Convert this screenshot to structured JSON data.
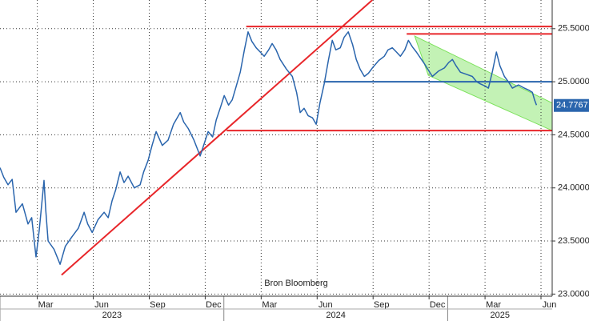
{
  "chart_data": {
    "type": "line",
    "source": "Bron Bloomberg",
    "x": [
      0,
      0.2,
      0.43,
      0.65,
      0.86,
      1.2,
      1.5,
      1.7,
      1.93,
      2.1,
      2.36,
      2.45,
      2.58,
      2.9,
      3.22,
      3.5,
      3.86,
      4.2,
      4.51,
      4.7,
      4.94,
      5.25,
      5.58,
      5.8,
      6.01,
      6.2,
      6.44,
      6.65,
      6.87,
      7.2,
      7.51,
      7.7,
      7.94,
      8.15,
      8.37,
      8.7,
      9.01,
      9.3,
      9.66,
      9.85,
      10.09,
      10.4,
      10.73,
      10.95,
      11.16,
      11.4,
      11.59,
      11.8,
      12.02,
      12.25,
      12.45,
      12.65,
      12.88,
      13.1,
      13.3,
      13.5,
      13.73,
      13.95,
      14.16,
      14.4,
      14.59,
      14.8,
      15.02,
      15.35,
      15.67,
      15.9,
      16.09,
      16.3,
      16.52,
      16.75,
      16.95,
      17.15,
      17.38,
      17.6,
      17.81,
      18.0,
      18.24,
      18.45,
      18.67,
      18.9,
      19.1,
      19.3,
      19.53,
      19.75,
      19.96,
      20.3,
      20.6,
      20.8,
      21.03,
      21.25,
      21.46,
      21.7,
      21.89,
      22.1,
      22.32,
      22.55,
      22.75,
      23.0,
      23.18,
      23.5,
      23.82,
      24.05,
      24.25,
      24.45,
      24.68,
      25.0,
      25.32,
      25.55,
      25.75,
      26.0,
      26.18,
      26.4,
      26.61,
      26.8,
      27.04,
      27.25,
      27.47,
      27.8,
      28.11,
      28.35,
      28.54,
      28.65,
      28.76
    ],
    "series": [
      {
        "color": "#2a65ad",
        "values": [
          24.19,
          24.1,
          24.03,
          24.08,
          23.77,
          23.85,
          23.66,
          23.72,
          23.35,
          23.6,
          24.07,
          23.8,
          23.5,
          23.42,
          23.28,
          23.45,
          23.54,
          23.62,
          23.77,
          23.66,
          23.58,
          23.7,
          23.77,
          23.72,
          23.88,
          23.98,
          24.15,
          24.05,
          24.11,
          24.0,
          24.03,
          24.15,
          24.26,
          24.4,
          24.53,
          24.4,
          24.45,
          24.6,
          24.71,
          24.62,
          24.56,
          24.45,
          24.3,
          24.42,
          24.53,
          24.48,
          24.64,
          24.75,
          24.87,
          24.78,
          24.83,
          24.95,
          25.09,
          25.3,
          25.47,
          25.38,
          25.32,
          25.28,
          25.24,
          25.3,
          25.36,
          25.3,
          25.21,
          25.12,
          25.05,
          24.9,
          24.71,
          24.75,
          24.68,
          24.66,
          24.6,
          24.8,
          24.98,
          25.2,
          25.39,
          25.3,
          25.32,
          25.42,
          25.47,
          25.35,
          25.21,
          25.12,
          25.05,
          25.08,
          25.13,
          25.2,
          25.24,
          25.3,
          25.32,
          25.28,
          25.24,
          25.3,
          25.39,
          25.33,
          25.28,
          25.22,
          25.17,
          25.1,
          25.05,
          25.1,
          25.13,
          25.18,
          25.21,
          25.15,
          25.09,
          25.07,
          25.05,
          25.0,
          24.98,
          24.96,
          24.94,
          25.1,
          25.28,
          25.15,
          25.05,
          25.0,
          24.94,
          24.97,
          24.94,
          24.92,
          24.9,
          24.83,
          24.78
        ]
      }
    ],
    "last_value_label": 24.7767,
    "xlim": [
      0,
      29.6
    ],
    "ylim": [
      22.98,
      25.77
    ],
    "xticks": [
      {
        "value": 2,
        "label": "Mar"
      },
      {
        "value": 5,
        "label": "Jun"
      },
      {
        "value": 8,
        "label": "Sep"
      },
      {
        "value": 11,
        "label": "Dec"
      },
      {
        "value": 14,
        "label": "Mar"
      },
      {
        "value": 17,
        "label": "Jun"
      },
      {
        "value": 20,
        "label": "Sep"
      },
      {
        "value": 23,
        "label": "Dec"
      },
      {
        "value": 26,
        "label": "Mar"
      },
      {
        "value": 29,
        "label": "Jun"
      }
    ],
    "year_ticks": [
      {
        "value": 0,
        "label": "2023"
      },
      {
        "value": 12,
        "label": "2024"
      },
      {
        "value": 24,
        "label": "2025"
      }
    ],
    "yticks": [
      {
        "value": 23,
        "label": "23.0000"
      },
      {
        "value": 23.5,
        "label": "23.5000"
      },
      {
        "value": 24,
        "label": "24.0000"
      },
      {
        "value": 24.5,
        "label": "24.5000"
      },
      {
        "value": 25,
        "label": "25.0000"
      },
      {
        "value": 25.5,
        "label": "25.5000"
      }
    ],
    "grid": true,
    "reference_lines": [
      {
        "color": "#e8262a",
        "points": [
          [
            3.3,
            23.18
          ],
          [
            19.96,
            25.77
          ]
        ]
      },
      {
        "color": "#e8262a",
        "points": [
          [
            13.2,
            25.52
          ],
          [
            29.6,
            25.52
          ]
        ]
      },
      {
        "color": "#e8262a",
        "points": [
          [
            21.8,
            25.45
          ],
          [
            29.6,
            25.45
          ]
        ]
      },
      {
        "color": "#e8262a",
        "points": [
          [
            12.15,
            24.54
          ],
          [
            29.6,
            24.54
          ]
        ]
      },
      {
        "color": "#2a65ad",
        "points": [
          [
            17.38,
            25.0
          ],
          [
            29.6,
            25.0
          ]
        ]
      }
    ],
    "channel": {
      "color": "#7be25a",
      "points": [
        [
          22.23,
          25.43
        ],
        [
          29.6,
          24.8
        ],
        [
          29.6,
          24.54
        ],
        [
          22.96,
          25.06
        ]
      ]
    }
  }
}
